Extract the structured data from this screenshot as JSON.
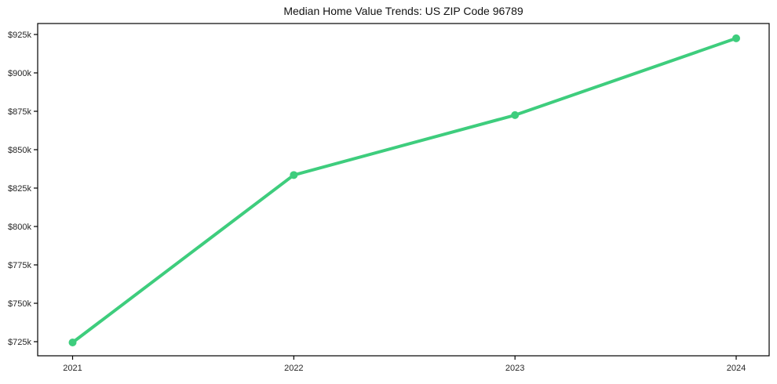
{
  "page": {
    "background": "#ffffff"
  },
  "chart_data": {
    "type": "line",
    "title": "Median Home Value Trends: US ZIP Code 96789",
    "categories": [
      "2021",
      "2022",
      "2023",
      "2024"
    ],
    "values": [
      724500,
      833500,
      872500,
      922500
    ],
    "xlabel": "",
    "ylabel": "",
    "yticks": [
      725000,
      750000,
      775000,
      800000,
      825000,
      850000,
      875000,
      900000,
      925000
    ],
    "ytick_labels": [
      "$725k",
      "$750k",
      "$775k",
      "$800k",
      "$825k",
      "$850k",
      "$875k",
      "$900k",
      "$925k"
    ],
    "ylim": [
      716000,
      932000
    ],
    "grid": false,
    "legend": false,
    "frame": "box",
    "line_color": "#3ecd7d",
    "marker": "circle",
    "axis_color": "#000000",
    "tick_label_color": "#262626",
    "title_color": "#111111"
  }
}
